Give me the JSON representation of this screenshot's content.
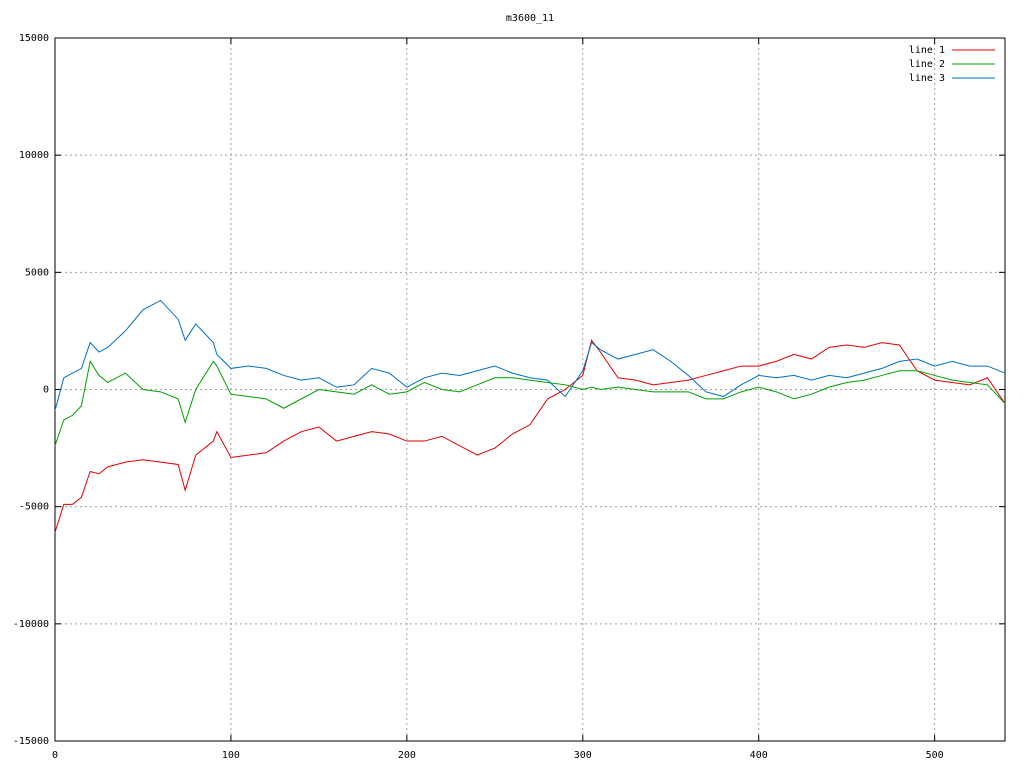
{
  "chart_data": {
    "type": "line",
    "title": "m3600_11",
    "x": [
      0,
      5,
      10,
      15,
      20,
      25,
      30,
      40,
      50,
      60,
      70,
      74,
      80,
      90,
      92,
      100,
      110,
      120,
      130,
      140,
      150,
      160,
      170,
      180,
      190,
      200,
      210,
      220,
      230,
      240,
      250,
      260,
      270,
      280,
      290,
      300,
      305,
      310,
      320,
      330,
      340,
      350,
      360,
      370,
      380,
      390,
      400,
      410,
      420,
      430,
      440,
      450,
      460,
      470,
      480,
      490,
      500,
      510,
      520,
      530,
      540
    ],
    "series": [
      {
        "name": "line 1",
        "color": "#e00000",
        "values": [
          -6100,
          -4900,
          -4900,
          -4600,
          -3500,
          -3600,
          -3300,
          -3100,
          -3000,
          -3100,
          -3200,
          -4300,
          -2800,
          -2200,
          -1800,
          -2900,
          -2800,
          -2700,
          -2200,
          -1800,
          -1600,
          -2200,
          -2000,
          -1800,
          -1900,
          -2200,
          -2200,
          -2000,
          -2400,
          -2800,
          -2500,
          -1900,
          -1500,
          -400,
          0,
          600,
          2100,
          1600,
          500,
          400,
          200,
          300,
          400,
          600,
          800,
          1000,
          1000,
          1200,
          1500,
          1300,
          1800,
          1900,
          1800,
          2000,
          1900,
          800,
          400,
          300,
          200,
          500,
          -600
        ]
      },
      {
        "name": "line 2",
        "color": "#00a000",
        "values": [
          -2400,
          -1300,
          -1100,
          -700,
          1200,
          600,
          300,
          700,
          0,
          -100,
          -400,
          -1400,
          0,
          1200,
          1000,
          -200,
          -300,
          -400,
          -800,
          -400,
          0,
          -100,
          -200,
          200,
          -200,
          -100,
          300,
          0,
          -100,
          200,
          500,
          500,
          400,
          300,
          200,
          0,
          100,
          0,
          100,
          0,
          -100,
          -100,
          -100,
          -400,
          -400,
          -100,
          100,
          -100,
          -400,
          -200,
          100,
          300,
          400,
          600,
          800,
          800,
          600,
          400,
          300,
          200,
          -600
        ]
      },
      {
        "name": "line 3",
        "color": "#0070c8",
        "values": [
          -900,
          500,
          700,
          900,
          2000,
          1600,
          1800,
          2500,
          3400,
          3800,
          3000,
          2100,
          2800,
          2000,
          1500,
          900,
          1000,
          900,
          600,
          400,
          500,
          100,
          200,
          900,
          700,
          100,
          500,
          700,
          600,
          800,
          1000,
          700,
          500,
          400,
          -300,
          800,
          2000,
          1700,
          1300,
          1500,
          1700,
          1200,
          600,
          -100,
          -300,
          200,
          600,
          500,
          600,
          400,
          600,
          500,
          700,
          900,
          1200,
          1300,
          1000,
          1200,
          1000,
          1000,
          700
        ]
      }
    ],
    "xlim": [
      0,
      540
    ],
    "ylim": [
      -15000,
      15000
    ],
    "xticks": [
      0,
      100,
      200,
      300,
      400,
      500
    ],
    "yticks": [
      -15000,
      -10000,
      -5000,
      0,
      5000,
      10000,
      15000
    ],
    "grid": true,
    "legend": "top-right"
  }
}
